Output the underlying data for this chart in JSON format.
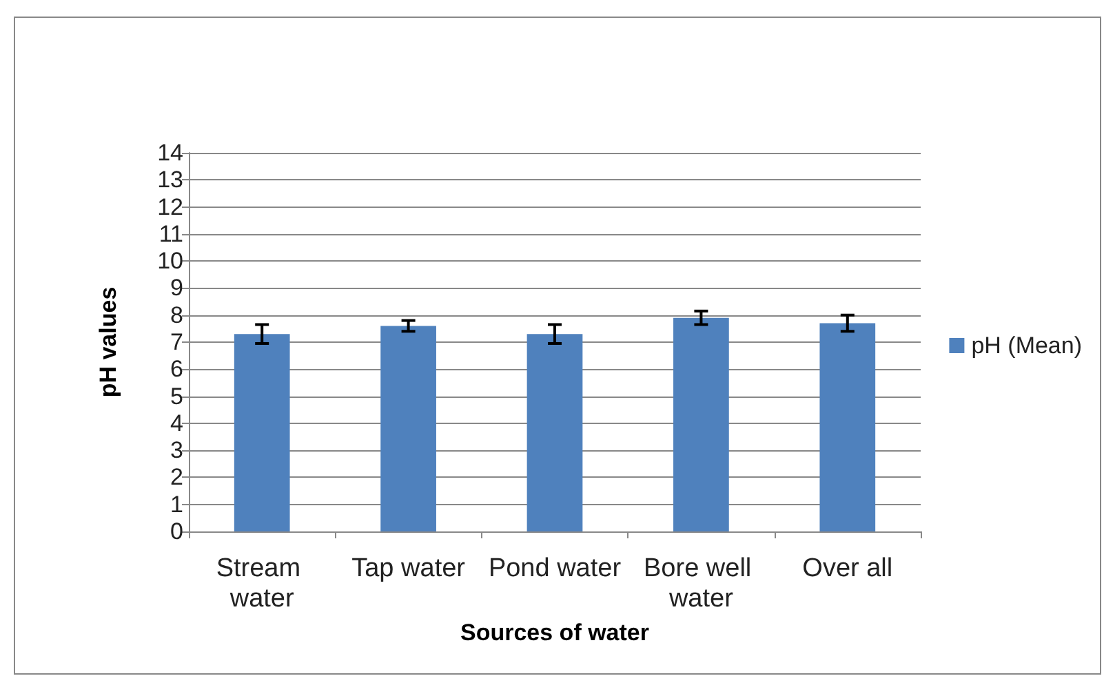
{
  "chart_data": {
    "type": "bar",
    "xlabel": "Sources of water",
    "ylabel": "pH values",
    "categories": [
      "Stream water",
      "Tap water",
      "Pond water",
      "Bore well water",
      "Over all"
    ],
    "series": [
      {
        "name": "pH (Mean)",
        "color": "#4f81bd",
        "values": [
          7.3,
          7.6,
          7.3,
          7.9,
          7.7
        ],
        "errors": [
          0.35,
          0.2,
          0.35,
          0.25,
          0.3
        ]
      }
    ],
    "ylim": [
      0,
      14
    ],
    "yticks": [
      0,
      1,
      2,
      3,
      4,
      5,
      6,
      7,
      8,
      9,
      10,
      11,
      12,
      13,
      14
    ],
    "grid": "y",
    "legend": "right"
  }
}
